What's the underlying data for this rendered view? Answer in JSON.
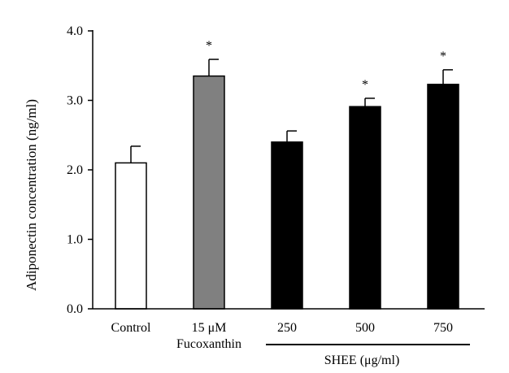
{
  "chart_data": {
    "type": "bar",
    "title": "",
    "ylabel": "Adiponectin concentration (ng/ml)",
    "xlabel": "",
    "ylim": [
      0,
      4.0
    ],
    "yticks": [
      "0.0",
      "1.0",
      "2.0",
      "3.0",
      "4.0"
    ],
    "grid": false,
    "legend": "none",
    "categories": [
      {
        "label": "Control",
        "sublabel": ""
      },
      {
        "label": "15 μM",
        "sublabel": "Fucoxanthin"
      },
      {
        "label": "250",
        "sublabel": ""
      },
      {
        "label": "500",
        "sublabel": ""
      },
      {
        "label": "750",
        "sublabel": ""
      }
    ],
    "values": [
      2.1,
      3.35,
      2.4,
      2.91,
      3.23
    ],
    "errors": [
      0.24,
      0.24,
      0.16,
      0.12,
      0.21
    ],
    "significance": [
      "",
      "*",
      "",
      "*",
      "*"
    ],
    "fill_colors": [
      "#ffffff",
      "#808080",
      "#000000",
      "#000000",
      "#000000"
    ],
    "group_label": "SHEE (μg/ml)"
  }
}
